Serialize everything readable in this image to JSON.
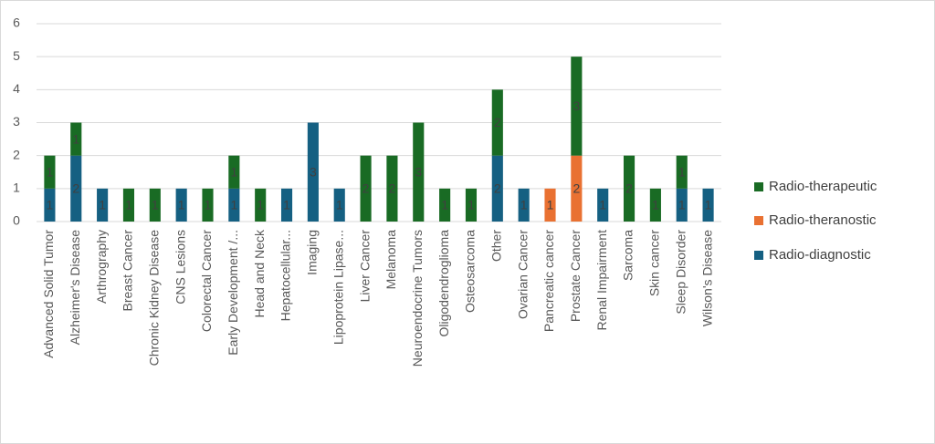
{
  "chart_data": {
    "type": "bar",
    "stacked": true,
    "categories": [
      "Advanced Solid Tumor",
      "Alzheimer's Disease",
      "Arthrography",
      "Breast Cancer",
      "Chronic Kidney Disease",
      "CNS Lesions",
      "Colorectal Cancer",
      "Early Development /...",
      "Head and Neck",
      "Hepatocellular...",
      "Imaging",
      "Lipoprotein Lipase...",
      "Liver Cancer",
      "Melanoma",
      "Neuroendocrine Tumors",
      "Oligodendroglioma",
      "Osteosarcoma",
      "Other",
      "Ovarian Cancer",
      "Pancreatic cancer",
      "Prostate Cancer",
      "Renal Impairment",
      "Sarcoma",
      "Skin cancer",
      "Sleep Disorder",
      "Wilson's Disease"
    ],
    "series": [
      {
        "name": "Radio-diagnostic",
        "color": "#156082",
        "values": [
          1,
          2,
          1,
          null,
          null,
          1,
          null,
          1,
          null,
          1,
          3,
          1,
          null,
          null,
          null,
          null,
          null,
          2,
          1,
          null,
          null,
          1,
          null,
          null,
          1,
          1
        ]
      },
      {
        "name": "Radio-theranostic",
        "color": "#e97132",
        "values": [
          null,
          null,
          null,
          null,
          null,
          null,
          null,
          null,
          null,
          null,
          null,
          null,
          null,
          null,
          null,
          null,
          null,
          null,
          null,
          1,
          2,
          null,
          null,
          null,
          null,
          null
        ]
      },
      {
        "name": "Radio-therapeutic",
        "color": "#196b24",
        "values": [
          1,
          1,
          null,
          1,
          1,
          null,
          1,
          1,
          1,
          null,
          null,
          null,
          2,
          2,
          3,
          1,
          1,
          2,
          null,
          null,
          3,
          null,
          2,
          1,
          1,
          null
        ]
      }
    ],
    "ylim": [
      0,
      6
    ],
    "yticks": [
      0,
      1,
      2,
      3,
      4,
      5,
      6
    ],
    "grid": true,
    "legend": "right",
    "data_labels": true
  }
}
